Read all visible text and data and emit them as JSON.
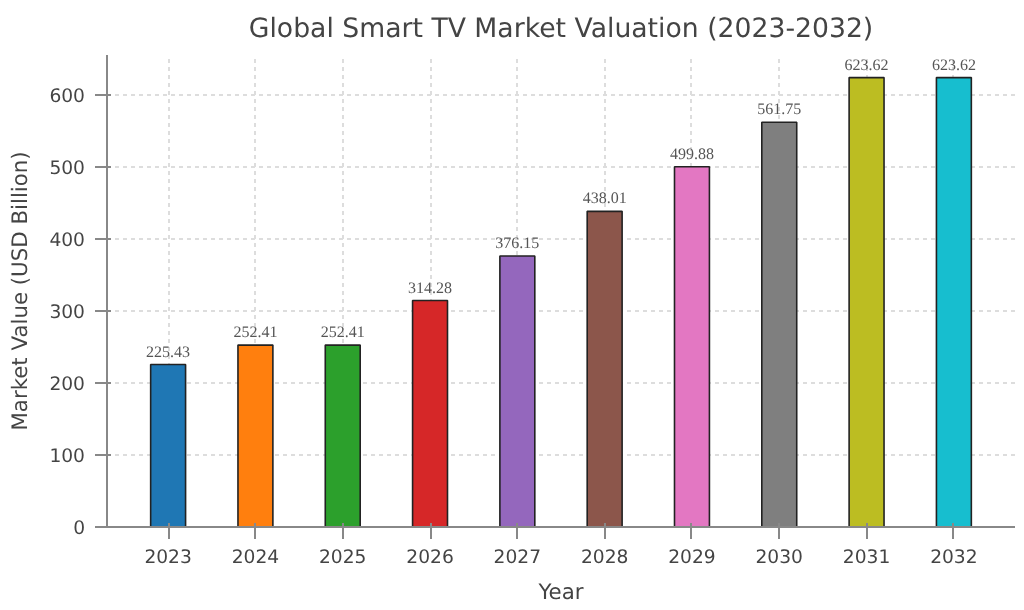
{
  "chart_data": {
    "type": "bar",
    "title": "Global Smart TV Market Valuation (2023-2032)",
    "xlabel": "Year",
    "ylabel": "Market Value (USD Billion)",
    "categories": [
      "2023",
      "2024",
      "2025",
      "2026",
      "2027",
      "2028",
      "2029",
      "2030",
      "2031",
      "2032"
    ],
    "values": [
      225.43,
      252.41,
      252.41,
      314.28,
      376.15,
      438.01,
      499.88,
      561.75,
      623.62,
      623.62
    ],
    "colors": [
      "#1f77b4",
      "#ff7f0e",
      "#2ca02c",
      "#d62728",
      "#9467bd",
      "#8c564b",
      "#e377c2",
      "#7f7f7f",
      "#bcbd22",
      "#17becf"
    ],
    "ylim": [
      0,
      655
    ],
    "yticks": [
      0,
      100,
      200,
      300,
      400,
      500,
      600
    ],
    "grid": true,
    "data_labels": true
  }
}
